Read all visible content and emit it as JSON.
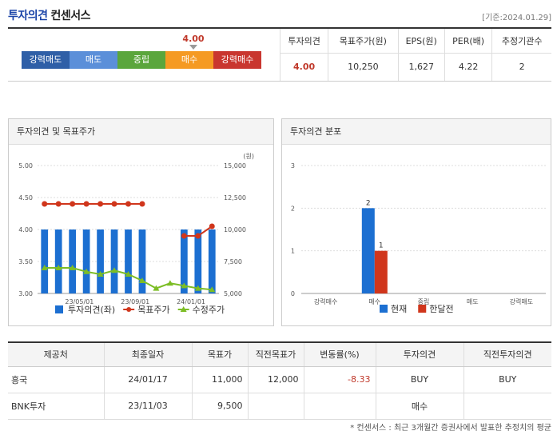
{
  "header": {
    "title": "투자의견",
    "subtitle": "컨센서스",
    "date": "[기준:2024.01.29]"
  },
  "scale": {
    "items": [
      {
        "label": "강력매도",
        "color": "#2f5fa7"
      },
      {
        "label": "매도",
        "color": "#5b8fd9"
      },
      {
        "label": "중립",
        "color": "#5aa63c"
      },
      {
        "label": "매수",
        "color": "#f59a23"
      },
      {
        "label": "강력매수",
        "color": "#c9362f"
      }
    ],
    "current_value": "4.00"
  },
  "summary": {
    "headers": [
      "투자의견",
      "목표주가(원)",
      "EPS(원)",
      "PER(배)",
      "추정기관수"
    ],
    "values": [
      "4.00",
      "10,250",
      "1,627",
      "4.22",
      "2"
    ]
  },
  "panel1": {
    "title": "투자의견 및 목표주가"
  },
  "panel2": {
    "title": "투자의견 분포"
  },
  "chart_data": [
    {
      "type": "bar",
      "title": "투자의견 및 목표주가",
      "y_unit_right": "(원)",
      "ylim_left": [
        3.0,
        5.0
      ],
      "ylim_right": [
        5000,
        15000
      ],
      "yticks_left": [
        "5.00",
        "4.50",
        "4.00",
        "3.50",
        "3.00"
      ],
      "yticks_right": [
        "15,000",
        "12,500",
        "10,000",
        "7,500",
        "5,000"
      ],
      "xticks": [
        "23/05/01",
        "23/09/01",
        "24/01/01"
      ],
      "series": [
        {
          "name": "투자의견(좌)",
          "type": "bar",
          "color": "#1c6fd1",
          "values": [
            4,
            4,
            4,
            4,
            4,
            4,
            4,
            4,
            null,
            null,
            4,
            4,
            4
          ]
        },
        {
          "name": "목표주가",
          "type": "line",
          "color": "#d0361c",
          "values": [
            12000,
            12000,
            12000,
            12000,
            12000,
            12000,
            12000,
            12000,
            null,
            null,
            9500,
            9500,
            10250
          ]
        },
        {
          "name": "수정주가",
          "type": "line",
          "color": "#7cbd25",
          "values": [
            7000,
            7000,
            7000,
            6700,
            6500,
            6800,
            6500,
            6000,
            5400,
            5800,
            5600,
            5400,
            5300
          ]
        }
      ]
    },
    {
      "type": "bar",
      "title": "투자의견 분포",
      "categories": [
        "강력매수",
        "매수",
        "중립",
        "매도",
        "강력매도"
      ],
      "ylim": [
        0,
        3
      ],
      "yticks": [
        "3",
        "2",
        "1",
        "0"
      ],
      "series": [
        {
          "name": "현재",
          "color": "#1c6fd1",
          "values": [
            0,
            2,
            0,
            0,
            0
          ]
        },
        {
          "name": "한달전",
          "color": "#d0361c",
          "values": [
            0,
            1,
            0,
            0,
            0
          ]
        }
      ],
      "data_labels": [
        "2",
        "1"
      ]
    }
  ],
  "table": {
    "headers": [
      "제공처",
      "최종일자",
      "목표가",
      "직전목표가",
      "변동률(%)",
      "투자의견",
      "직전투자의견"
    ],
    "rows": [
      [
        "흥국",
        "24/01/17",
        "11,000",
        "12,000",
        "-8.33",
        "BUY",
        "BUY"
      ],
      [
        "BNK투자",
        "23/11/03",
        "9,500",
        "",
        "",
        "매수",
        ""
      ]
    ]
  },
  "note": "* 컨센서스 : 최근 3개월간 증권사에서 발표한 추정치의 평균"
}
